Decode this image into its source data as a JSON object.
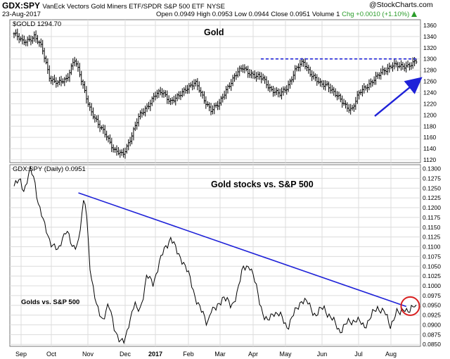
{
  "header": {
    "symbol": "GDX:SPY",
    "description": "VanEck Vectors Gold Miners ETF/SPDR S&P 500 ETF",
    "exchange": "NYSE",
    "date": "23-Aug-2017",
    "quote_open": "Open 0.0949",
    "quote_high": "High 0.0953",
    "quote_low": "Low 0.0944",
    "quote_close": "Close 0.0951",
    "quote_volume": "Volume 1",
    "quote_change": "Chg +0.0010 (+1.10%)",
    "change_color": "#2a9d2a",
    "up_icon": "triangle-up-icon",
    "brand": "@StockCharts.com"
  },
  "chart_data": [
    {
      "type": "ohlc",
      "title": "Gold",
      "legend": "$GOLD 1294.70",
      "ylim": [
        1115,
        1370
      ],
      "y_ticks": [
        1120,
        1140,
        1160,
        1180,
        1200,
        1220,
        1240,
        1260,
        1280,
        1300,
        1320,
        1340,
        1360
      ],
      "x_months": [
        "Sep",
        "Oct",
        "Nov",
        "Dec",
        "2017",
        "Feb",
        "Mar",
        "Apr",
        "May",
        "Jun",
        "Jul",
        "Aug"
      ],
      "grid": true,
      "color": "#000000",
      "annotation_colors": {
        "resistance": "#1f22d8",
        "trend_arrow": "#1f22d8"
      },
      "resistance_level": 1300,
      "close_series": {
        "t": [
          0,
          0.02,
          0.05,
          0.07,
          0.09,
          0.11,
          0.13,
          0.15,
          0.17,
          0.19,
          0.21,
          0.23,
          0.25,
          0.27,
          0.29,
          0.31,
          0.33,
          0.35,
          0.37,
          0.39,
          0.41,
          0.43,
          0.45,
          0.47,
          0.49,
          0.51,
          0.53,
          0.55,
          0.57,
          0.6,
          0.62,
          0.64,
          0.66,
          0.68,
          0.7,
          0.72,
          0.74,
          0.76,
          0.78,
          0.8,
          0.82,
          0.84,
          0.86,
          0.88,
          0.9,
          0.92,
          0.94,
          0.96,
          0.98,
          1.0
        ],
        "close": [
          1345,
          1330,
          1340,
          1318,
          1265,
          1255,
          1265,
          1300,
          1255,
          1210,
          1180,
          1165,
          1135,
          1128,
          1160,
          1195,
          1215,
          1235,
          1240,
          1225,
          1232,
          1250,
          1258,
          1230,
          1210,
          1218,
          1250,
          1270,
          1285,
          1268,
          1265,
          1245,
          1235,
          1252,
          1280,
          1295,
          1272,
          1254,
          1255,
          1235,
          1220,
          1210,
          1240,
          1255,
          1265,
          1280,
          1290,
          1285,
          1290,
          1295
        ]
      }
    },
    {
      "type": "line",
      "title": "Gold stocks vs. S&P 500",
      "legend": "GDX:SPY (Daily) 0.0951",
      "annotation": "Golds vs. S&P 500",
      "ylim": [
        0.0845,
        0.131
      ],
      "y_ticks": [
        "0.0850",
        "0.0875",
        "0.0900",
        "0.0925",
        "0.0950",
        "0.0975",
        "0.1000",
        "0.1025",
        "0.1050",
        "0.1075",
        "0.1100",
        "0.1125",
        "0.1150",
        "0.1175",
        "0.1200",
        "0.1225",
        "0.1250",
        "0.1275",
        "0.1300"
      ],
      "grid": true,
      "color": "#000000",
      "annotation_colors": {
        "downtrend": "#1f22d8",
        "circle": "#d81f1f"
      },
      "downtrend_line": {
        "start": {
          "t": 0.16,
          "value": 0.1238
        },
        "end": {
          "t": 0.975,
          "value": 0.0947
        }
      },
      "t": [
        0.0,
        0.015,
        0.025,
        0.04,
        0.05,
        0.06,
        0.075,
        0.09,
        0.11,
        0.12,
        0.13,
        0.145,
        0.16,
        0.175,
        0.18,
        0.19,
        0.205,
        0.22,
        0.235,
        0.25,
        0.265,
        0.275,
        0.285,
        0.3,
        0.305,
        0.315,
        0.33,
        0.345,
        0.36,
        0.375,
        0.39,
        0.405,
        0.42,
        0.435,
        0.45,
        0.465,
        0.48,
        0.49,
        0.5,
        0.52,
        0.54,
        0.555,
        0.57,
        0.585,
        0.6,
        0.62,
        0.63,
        0.645,
        0.66,
        0.68,
        0.7,
        0.715,
        0.73,
        0.75,
        0.77,
        0.79,
        0.81,
        0.83,
        0.85,
        0.87,
        0.89,
        0.905,
        0.92,
        0.935,
        0.95,
        0.96,
        0.97,
        0.985,
        1.0
      ],
      "values": [
        0.1255,
        0.127,
        0.1245,
        0.1295,
        0.1275,
        0.1215,
        0.1155,
        0.1115,
        0.1085,
        0.1125,
        0.1145,
        0.1095,
        0.1115,
        0.1225,
        0.1185,
        0.1035,
        0.0945,
        0.0915,
        0.095,
        0.0892,
        0.0855,
        0.0855,
        0.0905,
        0.0955,
        0.0935,
        0.0945,
        0.1025,
        0.1005,
        0.1055,
        0.1095,
        0.1125,
        0.1085,
        0.1065,
        0.1025,
        0.0975,
        0.0935,
        0.0905,
        0.094,
        0.0935,
        0.0975,
        0.0945,
        0.0985,
        0.1045,
        0.1055,
        0.1005,
        0.0925,
        0.0905,
        0.0935,
        0.0925,
        0.0895,
        0.0935,
        0.0965,
        0.0955,
        0.0925,
        0.0945,
        0.0915,
        0.0885,
        0.0905,
        0.0915,
        0.0895,
        0.0925,
        0.0945,
        0.0935,
        0.0895,
        0.0935,
        0.0925,
        0.0945,
        0.0935,
        0.0951
      ]
    }
  ]
}
